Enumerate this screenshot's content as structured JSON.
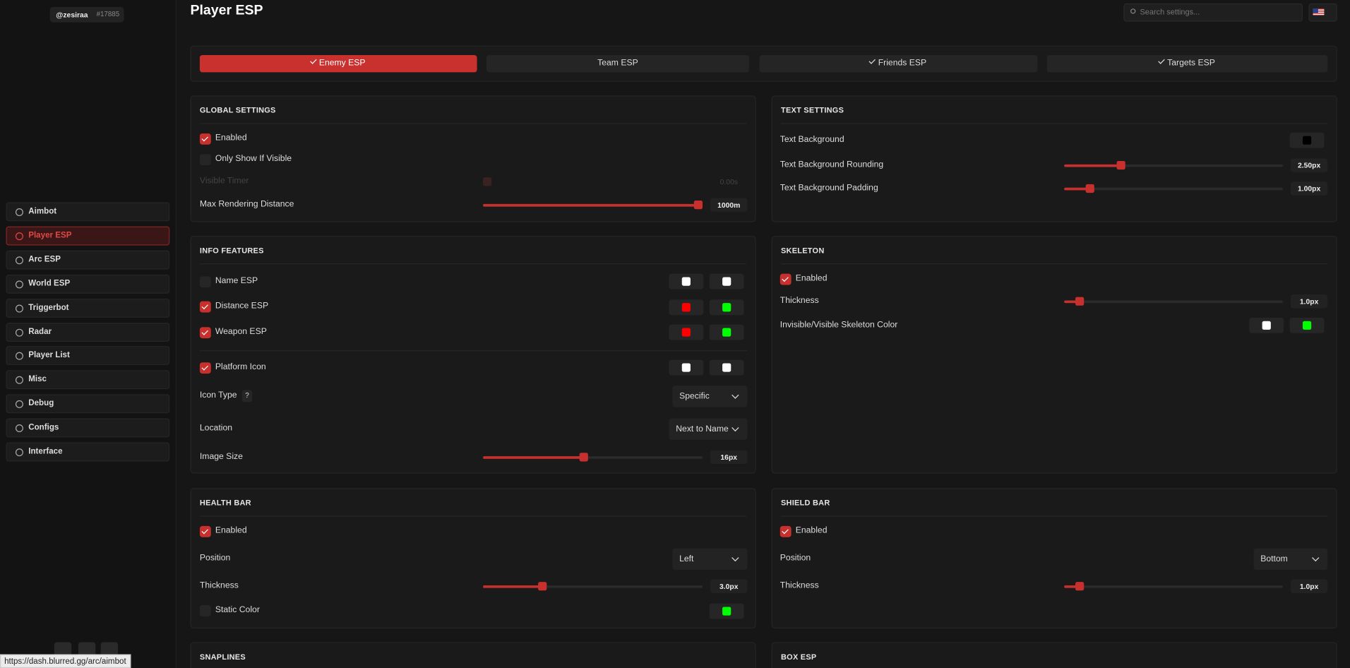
{
  "sidebar": {
    "user": "@zesiraa",
    "tag": "#17885",
    "nav": [
      "Aimbot",
      "Player ESP",
      "Arc ESP",
      "World ESP",
      "Triggerbot",
      "Radar",
      "Player List",
      "Misc",
      "Debug",
      "Configs",
      "Interface"
    ],
    "status_url": "https://dash.blurred.gg/arc/aimbot"
  },
  "header": {
    "title": "Player ESP",
    "search": "Search settings..."
  },
  "tabs": [
    "Enemy ESP",
    "Team ESP",
    "Friends ESP",
    "Targets ESP"
  ],
  "global_settings": {
    "title": "GLOBAL SETTINGS",
    "enabled": "Enabled",
    "only_visible": "Only Show If Visible",
    "visible_timer": "Visible Timer",
    "visible_timer_value": "0.00s",
    "max_distance": "Max Rendering Distance",
    "max_distance_value": "1000m"
  },
  "text_settings": {
    "title": "TEXT SETTINGS",
    "background": "Text Background",
    "rounding": "Text Background Rounding",
    "rounding_value": "2.50px",
    "padding": "Text Background Padding",
    "padding_value": "1.00px"
  },
  "info_features": {
    "title": "INFO FEATURES",
    "name": "Name ESP",
    "distance": "Distance ESP",
    "weapon": "Weapon ESP",
    "platform": "Platform Icon",
    "icon_type": "Icon Type",
    "icon_type_help": "?",
    "icon_type_value": "Specific",
    "location": "Location",
    "location_value": "Next to Name",
    "image_size": "Image Size",
    "image_size_value": "16px"
  },
  "skeleton": {
    "title": "SKELETON",
    "enabled": "Enabled",
    "thickness": "Thickness",
    "thickness_value": "1.0px",
    "color": "Invisible/Visible Skeleton Color"
  },
  "health_bar": {
    "title": "HEALTH BAR",
    "enabled": "Enabled",
    "position": "Position",
    "position_value": "Left",
    "thickness": "Thickness",
    "thickness_value": "3.0px",
    "static_color": "Static Color"
  },
  "shield_bar": {
    "title": "SHIELD BAR",
    "enabled": "Enabled",
    "position": "Position",
    "position_value": "Bottom",
    "thickness": "Thickness",
    "thickness_value": "1.0px"
  },
  "snaplines": {
    "title": "SNAPLINES"
  },
  "box_esp": {
    "title": "BOX ESP"
  }
}
